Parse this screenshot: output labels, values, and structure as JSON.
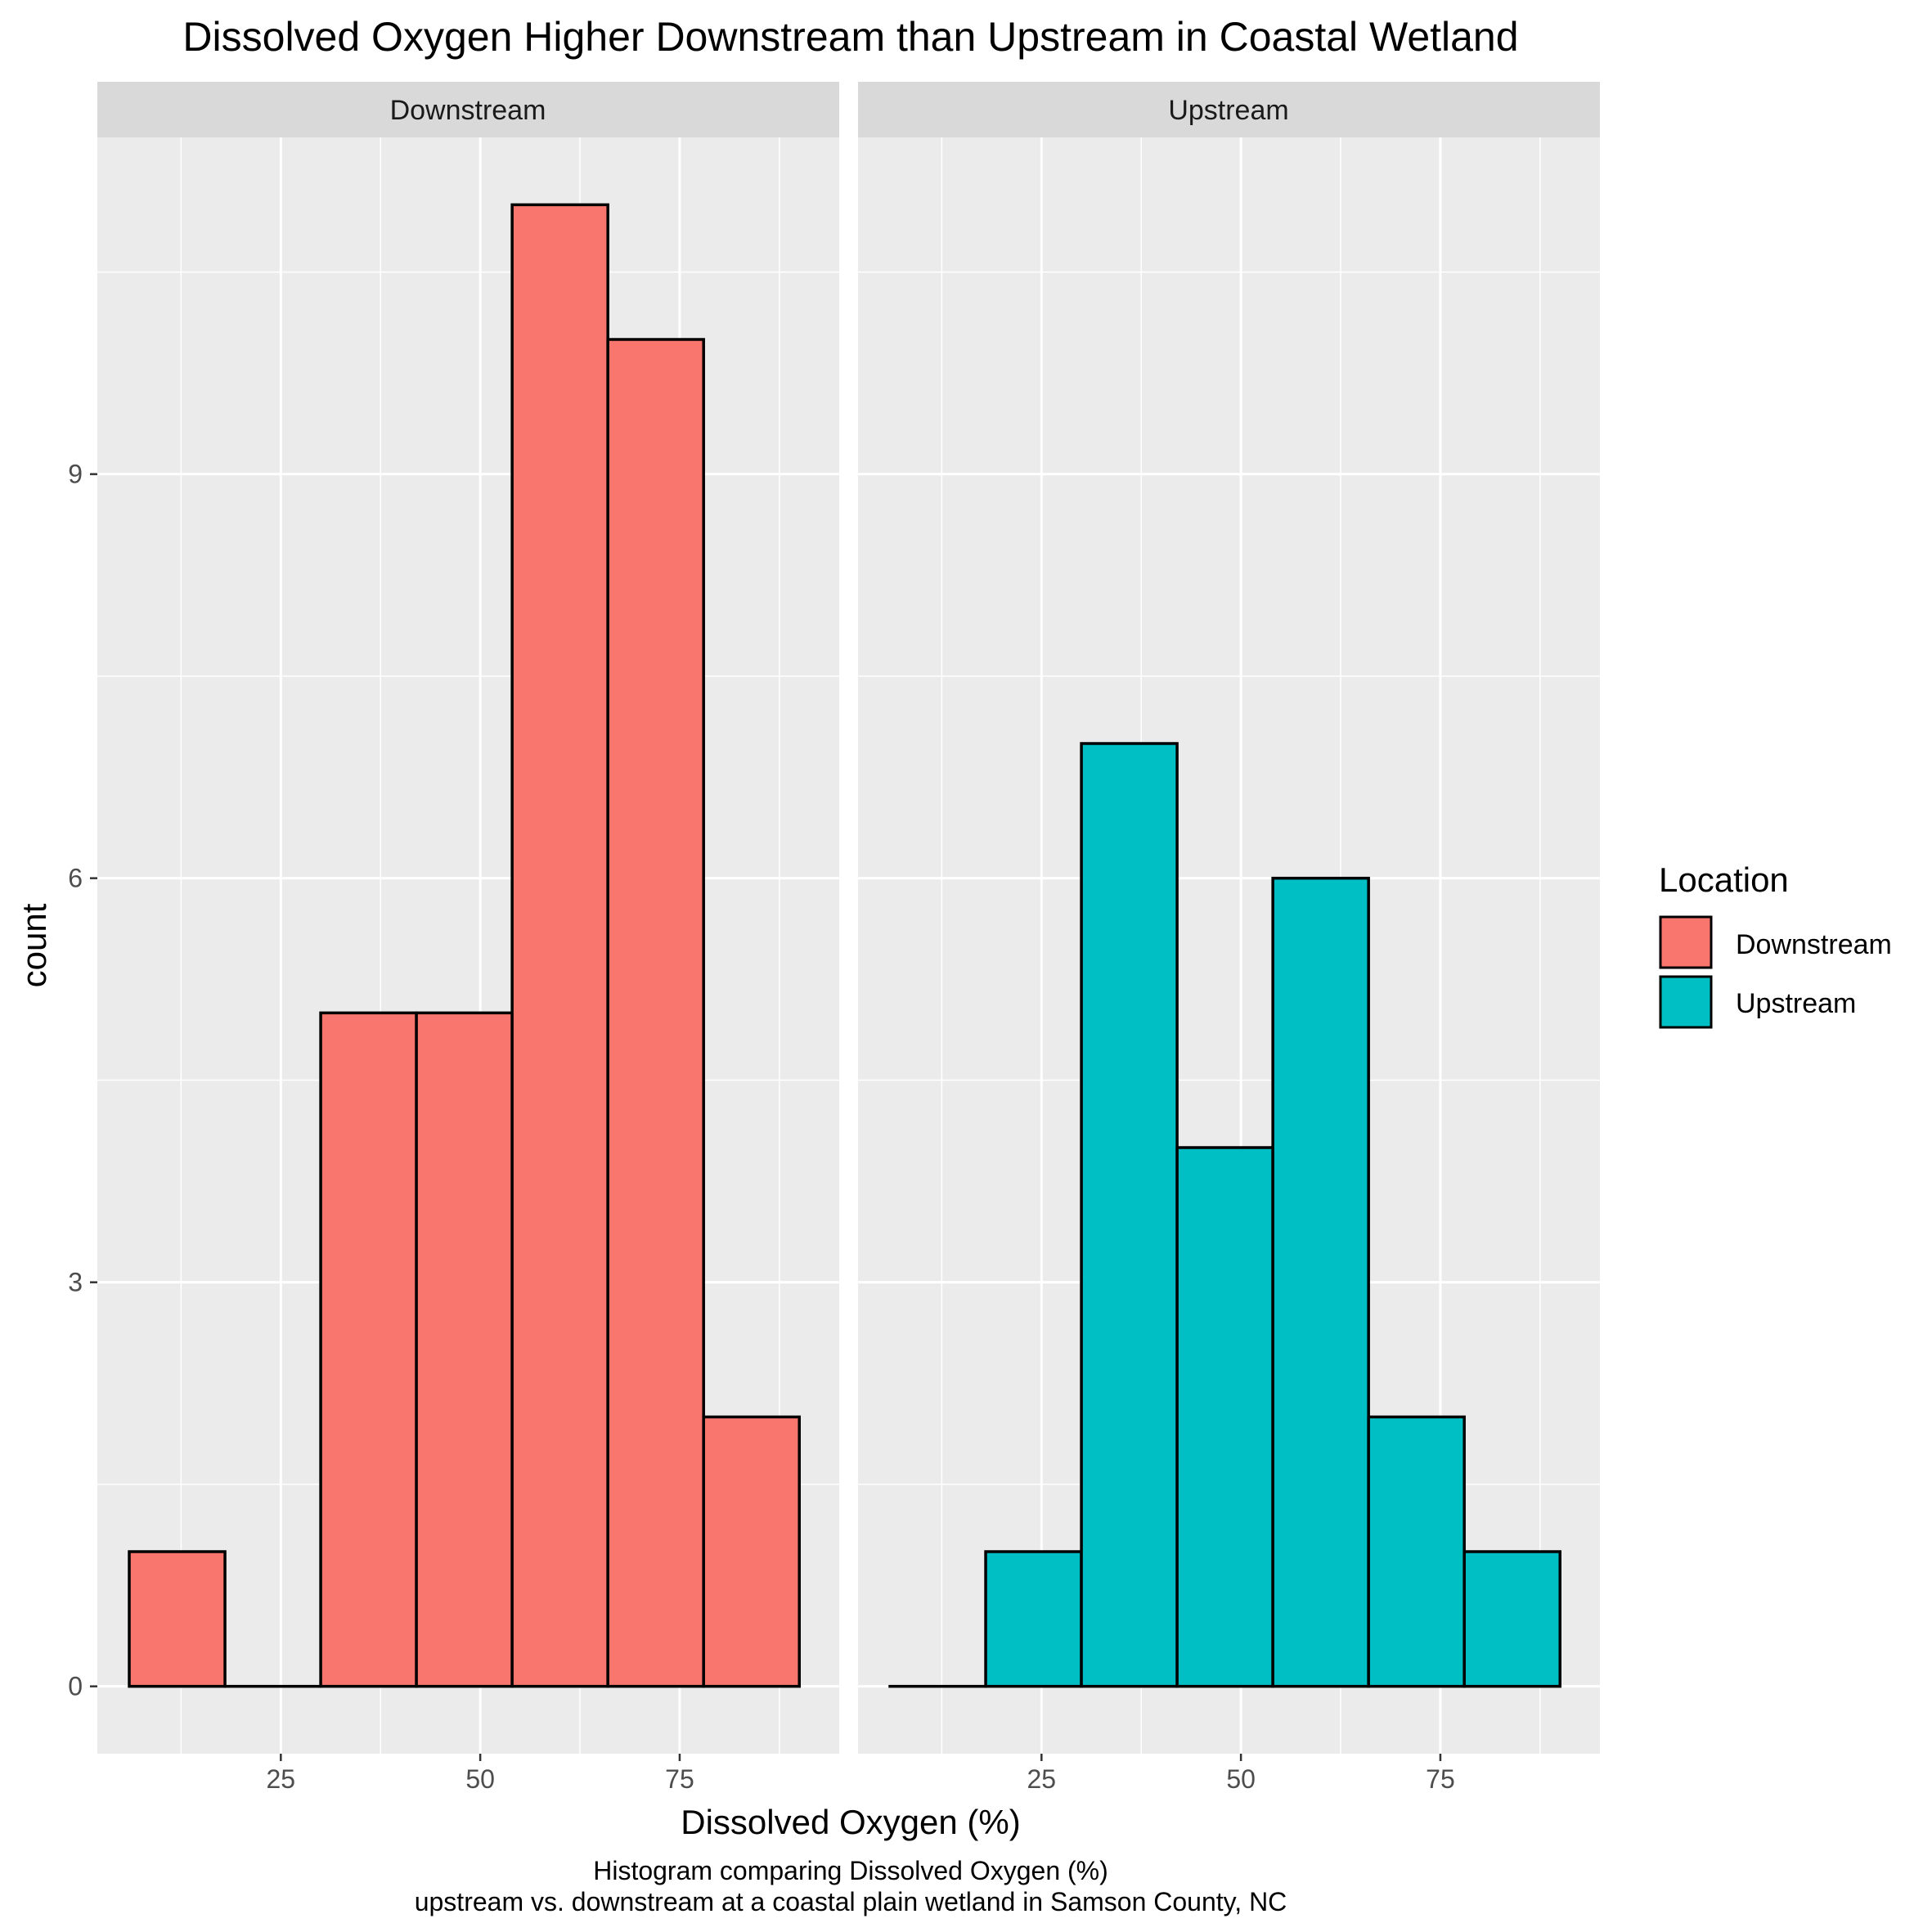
{
  "chart_data": {
    "type": "bar",
    "title": "Dissolved Oxygen Higher Downstream than Upstream in Coastal Wetland",
    "xlabel": "Dissolved Oxygen (%)",
    "ylabel": "count",
    "caption_lines": [
      "Histogram comparing Dissolved Oxygen (%)",
      "upstream vs. downstream at a coastal plain wetland in Samson County, NC"
    ],
    "bin_edges": [
      6,
      18,
      30,
      42,
      54,
      66,
      78,
      90
    ],
    "xlim": [
      2,
      95
    ],
    "ylim": [
      -0.5,
      11.5
    ],
    "x_ticks": [
      "25",
      "50",
      "75"
    ],
    "y_ticks": [
      "0",
      "3",
      "6",
      "9"
    ],
    "grid": true,
    "legend": {
      "title": "Location",
      "position": "right",
      "entries": [
        "Downstream",
        "Upstream"
      ]
    },
    "panels": [
      {
        "name": "Downstream",
        "color": "#F8766D",
        "counts": [
          1,
          0,
          5,
          5,
          11,
          10,
          2
        ]
      },
      {
        "name": "Upstream",
        "color": "#00BFC4",
        "counts": [
          0,
          1,
          7,
          4,
          6,
          2,
          1
        ]
      }
    ]
  }
}
